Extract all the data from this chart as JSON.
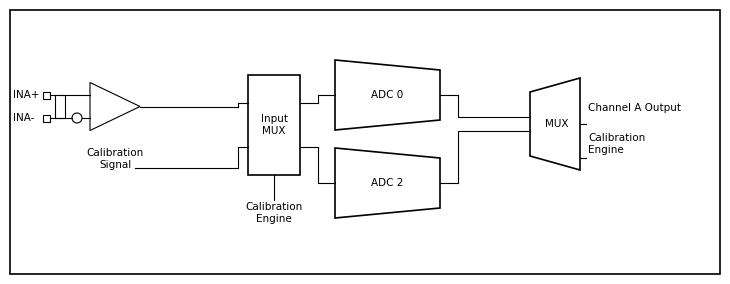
{
  "bg_color": "#ffffff",
  "line_color": "#000000",
  "text_color": "#000000",
  "font_size": 7.5,
  "fig_width": 7.3,
  "fig_height": 2.84,
  "labels": {
    "ina_plus": "INA+",
    "ina_minus": "INA-",
    "cal_signal": "Calibration\nSignal",
    "input_mux": "Input\nMUX",
    "cal_engine_bot": "Calibration\nEngine",
    "adc0": "ADC 0",
    "adc2": "ADC 2",
    "mux": "MUX",
    "channel_a_out": "Channel A Output",
    "cal_engine_right": "Calibration\nEngine"
  }
}
